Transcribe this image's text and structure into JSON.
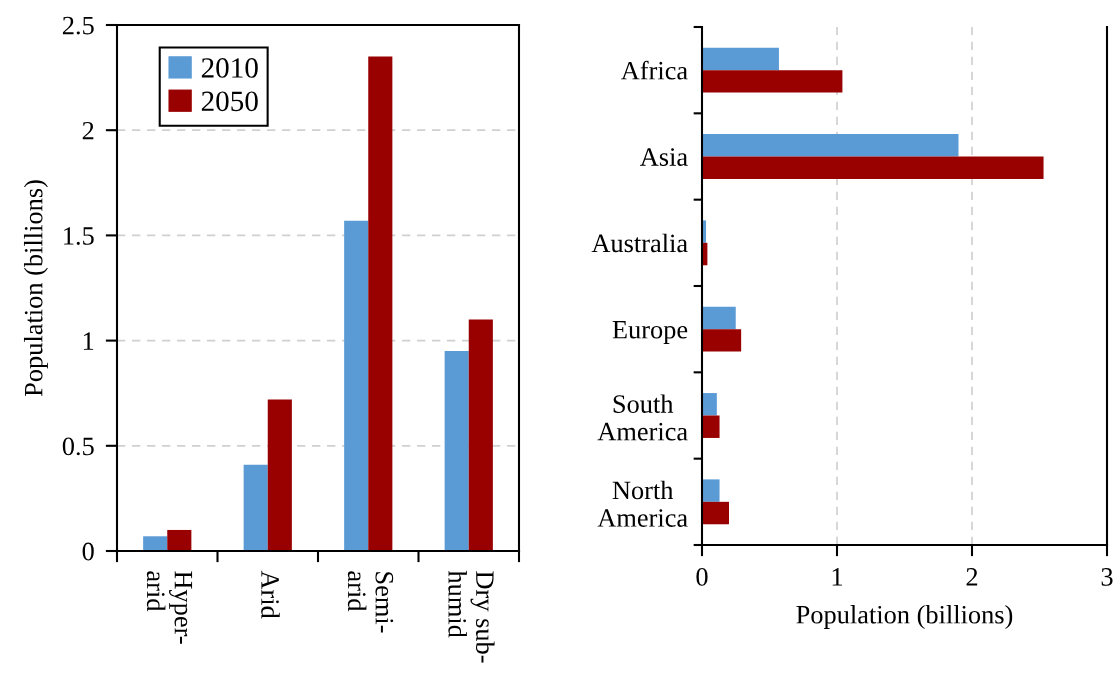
{
  "chart_data": [
    {
      "type": "bar",
      "ylabel": "Population (billions)",
      "categories": [
        "Hyper-\narid",
        "Arid",
        "Semi-\narid",
        "Dry sub-\nhumid"
      ],
      "series": [
        {
          "name": "2010",
          "color": "#5b9bd5",
          "values": [
            0.07,
            0.41,
            1.57,
            0.95
          ]
        },
        {
          "name": "2050",
          "color": "#990000",
          "values": [
            0.1,
            0.72,
            2.35,
            1.1
          ]
        }
      ],
      "ylim": [
        0,
        2.5
      ],
      "yticks": [
        0,
        0.5,
        1,
        1.5,
        2,
        2.5
      ],
      "grid": "y",
      "legend": "top left"
    },
    {
      "type": "bar",
      "orientation": "horizontal",
      "xlabel": "Population (billions)",
      "categories": [
        "Africa",
        "Asia",
        "Australia",
        "Europe",
        "South\nAmerica",
        "North\nAmerica"
      ],
      "series": [
        {
          "color": "#5b9bd5",
          "values": [
            0.57,
            1.9,
            0.03,
            0.25,
            0.11,
            0.13
          ]
        },
        {
          "color": "#990000",
          "values": [
            1.04,
            2.53,
            0.04,
            0.29,
            0.13,
            0.2
          ]
        }
      ],
      "xlim": [
        0,
        3
      ],
      "xticks": [
        0,
        1,
        2,
        3
      ],
      "grid": "x"
    }
  ]
}
